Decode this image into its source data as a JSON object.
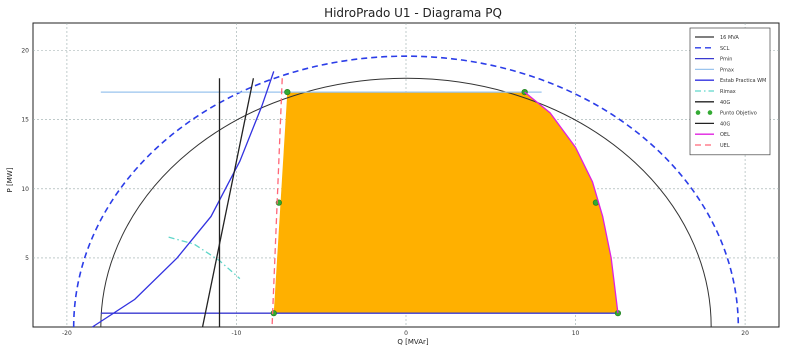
{
  "chart_data": {
    "type": "line",
    "title": "HidroPrado U1 - Diagrama PQ",
    "xlabel": "Q [MVAr]",
    "ylabel": "P [MW]",
    "xlim": [
      -22,
      22
    ],
    "ylim": [
      0,
      22
    ],
    "xticks": [
      -20,
      -10,
      0,
      10,
      20
    ],
    "yticks": [
      5,
      10,
      15,
      20
    ],
    "grid": true,
    "legend_position": "top-right",
    "fill_region": {
      "name": "feasible-area",
      "color": "#FFB000",
      "points": [
        [
          -7.8,
          1
        ],
        [
          -7,
          17
        ],
        [
          7,
          17
        ],
        [
          8.5,
          15.5
        ],
        [
          10,
          13
        ],
        [
          11,
          10.5
        ],
        [
          11.6,
          8
        ],
        [
          12.1,
          5
        ],
        [
          12.5,
          1
        ]
      ]
    },
    "series": [
      {
        "name": "16 MVA",
        "style": "solid",
        "color": "#333333",
        "shape": "semicircle",
        "radius": 18
      },
      {
        "name": "SCL",
        "style": "dashed",
        "color": "#2b3de8",
        "shape": "semicircle",
        "radius": 19.6
      },
      {
        "name": "Pmin",
        "style": "solid",
        "color": "#3a3ad0",
        "points": [
          [
            -18,
            1
          ],
          [
            12.5,
            1
          ]
        ]
      },
      {
        "name": "Pmax",
        "style": "solid",
        "color": "#9ac4ee",
        "points": [
          [
            -18,
            17
          ],
          [
            8,
            17
          ]
        ]
      },
      {
        "name": "Estab Practica WM",
        "style": "solid",
        "color": "#3232e0",
        "points": [
          [
            -18.5,
            0
          ],
          [
            -16,
            2
          ],
          [
            -13.5,
            5
          ],
          [
            -11.5,
            8
          ],
          [
            -9.8,
            12
          ],
          [
            -8.5,
            16
          ],
          [
            -7.8,
            18.5
          ]
        ]
      },
      {
        "name": "Rimax",
        "style": "dashdot",
        "color": "#5fd6c9",
        "points": [
          [
            -14,
            6.5
          ],
          [
            -12.5,
            6
          ],
          [
            -11,
            4.8
          ],
          [
            -9.8,
            3.5
          ]
        ]
      },
      {
        "name": "40G",
        "style": "solid",
        "color": "#222222",
        "points": [
          [
            -12,
            0
          ],
          [
            -9,
            18
          ]
        ]
      },
      {
        "name": "Punto Objetivo",
        "style": "marker",
        "color": "#33aa33",
        "points": [
          [
            -7,
            17
          ],
          [
            7,
            17
          ],
          [
            -7.5,
            9
          ],
          [
            11.2,
            9
          ],
          [
            -7.8,
            1
          ],
          [
            12.5,
            1
          ]
        ]
      },
      {
        "name": "40G",
        "style": "solid",
        "color": "#222222",
        "points": [
          [
            -11,
            0
          ],
          [
            -11,
            18
          ]
        ]
      },
      {
        "name": "OEL",
        "style": "solid",
        "color": "#e020e0",
        "points": [
          [
            7,
            17
          ],
          [
            8.5,
            15.5
          ],
          [
            10,
            13
          ],
          [
            11,
            10.5
          ],
          [
            11.6,
            8
          ],
          [
            12.1,
            5
          ],
          [
            12.5,
            1
          ]
        ]
      },
      {
        "name": "UEL",
        "style": "dashed",
        "color": "#ff6677",
        "points": [
          [
            -7.3,
            18
          ],
          [
            -7.5,
            12
          ],
          [
            -7.7,
            6
          ],
          [
            -7.9,
            0
          ]
        ]
      }
    ]
  }
}
